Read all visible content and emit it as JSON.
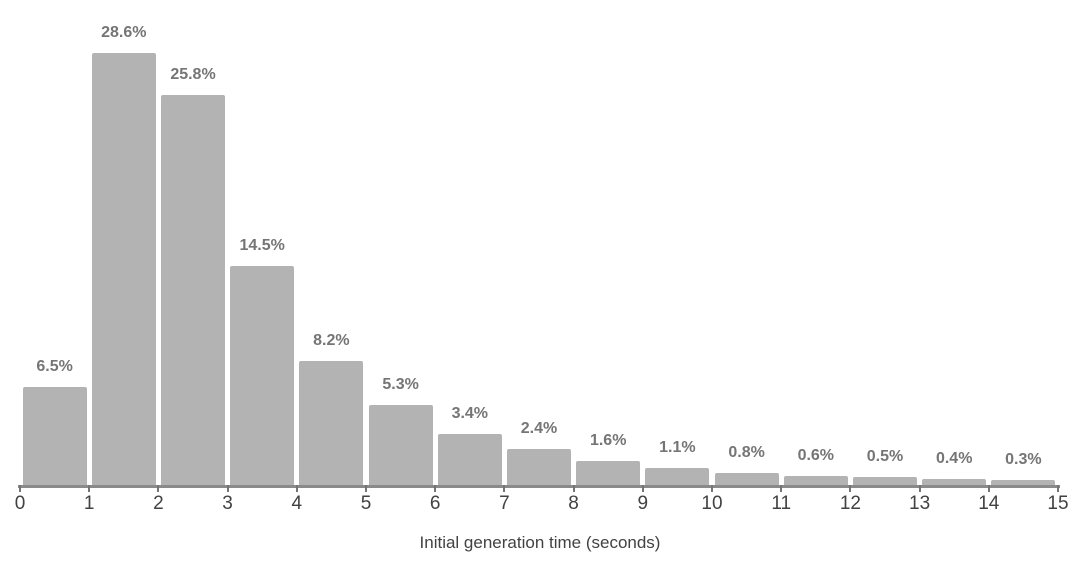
{
  "chart_data": {
    "type": "bar",
    "subtype": "histogram",
    "title": "",
    "xlabel": "Initial generation time (seconds)",
    "ylabel": "",
    "bin_edges": [
      0,
      1,
      2,
      3,
      4,
      5,
      6,
      7,
      8,
      9,
      10,
      11,
      12,
      13,
      14,
      15
    ],
    "x_tick_labels": [
      "0",
      "1",
      "2",
      "3",
      "4",
      "5",
      "6",
      "7",
      "8",
      "9",
      "10",
      "11",
      "12",
      "13",
      "14",
      "15"
    ],
    "values": [
      6.5,
      28.6,
      25.8,
      14.5,
      8.2,
      5.3,
      3.4,
      2.4,
      1.6,
      1.1,
      0.8,
      0.6,
      0.5,
      0.4,
      0.3
    ],
    "bar_labels": [
      "6.5%",
      "28.6%",
      "25.8%",
      "14.5%",
      "8.2%",
      "5.3%",
      "3.4%",
      "2.4%",
      "1.6%",
      "1.1%",
      "0.8%",
      "0.6%",
      "0.5%",
      "0.4%",
      "0.3%"
    ],
    "xlim": [
      0,
      15
    ],
    "ylim": [
      0,
      30
    ],
    "grid": false,
    "legend": "none",
    "y_axis_drawn": false,
    "colors": {
      "bar": "#b3b3b3",
      "axis_line": "#8a8a8a",
      "tick_mark": "#757575",
      "tick_label": "#424242",
      "value_label": "#757575",
      "axis_title": "#424242",
      "background": "#ffffff"
    }
  }
}
